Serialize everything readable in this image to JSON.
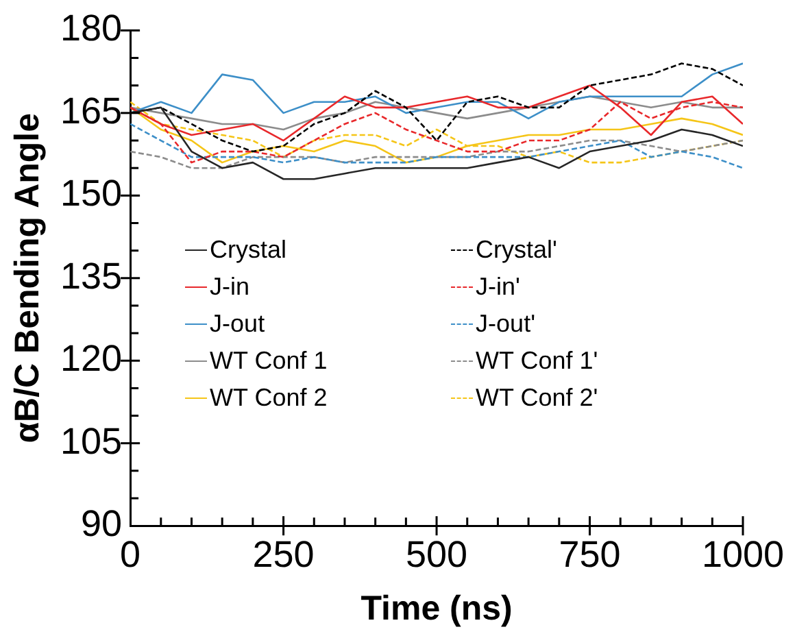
{
  "chart_data": {
    "type": "line",
    "xlabel": "Time (ns)",
    "ylabel": "αB/C Bending Angle",
    "x": [
      0,
      50,
      100,
      150,
      200,
      250,
      300,
      350,
      400,
      450,
      500,
      550,
      600,
      650,
      700,
      750,
      800,
      850,
      900,
      950,
      1000
    ],
    "xlim": [
      0,
      1000
    ],
    "xticks": [
      0,
      {
        "value": 50,
        "label": null
      },
      {
        "value": 100,
        "label": null
      },
      {
        "value": 150,
        "label": null
      },
      {
        "value": 200,
        "label": null
      },
      250,
      {
        "value": 300,
        "label": null
      },
      {
        "value": 350,
        "label": null
      },
      {
        "value": 400,
        "label": null
      },
      {
        "value": 450,
        "label": null
      },
      500,
      {
        "value": 550,
        "label": null
      },
      {
        "value": 600,
        "label": null
      },
      {
        "value": 650,
        "label": null
      },
      {
        "value": 700,
        "label": null
      },
      750,
      {
        "value": 800,
        "label": null
      },
      {
        "value": 850,
        "label": null
      },
      {
        "value": 900,
        "label": null
      },
      {
        "value": 950,
        "label": null
      },
      1000
    ],
    "ylim": [
      90,
      180
    ],
    "yticks": [
      90,
      {
        "value": 95,
        "label": null
      },
      {
        "value": 100,
        "label": null
      },
      105,
      {
        "value": 110,
        "label": null
      },
      {
        "value": 115,
        "label": null
      },
      120,
      {
        "value": 125,
        "label": null
      },
      {
        "value": 130,
        "label": null
      },
      135,
      {
        "value": 140,
        "label": null
      },
      {
        "value": 145,
        "label": null
      },
      150,
      {
        "value": 155,
        "label": null
      },
      {
        "value": 160,
        "label": null
      },
      165,
      {
        "value": 170,
        "label": null
      },
      {
        "value": 175,
        "label": null
      },
      180
    ],
    "grid": false,
    "legend": "bottom",
    "marker": "none",
    "series": [
      {
        "name": "Crystal",
        "color": "#262626",
        "line_style": "solid",
        "values": [
          165,
          166,
          158,
          155,
          156,
          153,
          153,
          154,
          155,
          155,
          155,
          155,
          156,
          157,
          155,
          158,
          159,
          160,
          162,
          161,
          159
        ]
      },
      {
        "name": "Crystal'",
        "color": "#000000",
        "line_style": "dashed",
        "values": [
          165,
          166,
          163,
          160,
          158,
          159,
          163,
          165,
          169,
          166,
          160,
          167,
          168,
          166,
          166,
          170,
          171,
          172,
          174,
          173,
          170
        ]
      },
      {
        "name": "J-in",
        "color": "#e8282b",
        "line_style": "solid",
        "values": [
          166,
          163,
          161,
          162,
          163,
          160,
          164,
          168,
          166,
          166,
          167,
          168,
          166,
          166,
          168,
          170,
          166,
          161,
          167,
          168,
          163
        ]
      },
      {
        "name": "J-in'",
        "color": "#e8282b",
        "line_style": "dashed",
        "values": [
          166,
          163,
          156,
          158,
          158,
          157,
          160,
          163,
          165,
          162,
          160,
          158,
          158,
          160,
          160,
          162,
          167,
          164,
          166,
          167,
          166
        ]
      },
      {
        "name": "J-out",
        "color": "#3d8fc8",
        "line_style": "solid",
        "values": [
          165,
          167,
          165,
          172,
          171,
          165,
          167,
          167,
          168,
          165,
          166,
          167,
          167,
          164,
          167,
          168,
          168,
          168,
          168,
          172,
          174
        ]
      },
      {
        "name": "J-out'",
        "color": "#3d8fc8",
        "line_style": "dashed",
        "values": [
          163,
          160,
          157,
          157,
          157,
          156,
          157,
          156,
          156,
          156,
          157,
          157,
          157,
          157,
          158,
          159,
          160,
          157,
          158,
          157,
          155
        ]
      },
      {
        "name": "WT Conf 1",
        "color": "#8c8c8c",
        "line_style": "solid",
        "values": [
          166,
          165,
          164,
          163,
          163,
          162,
          164,
          165,
          167,
          166,
          165,
          164,
          165,
          166,
          167,
          168,
          167,
          166,
          167,
          166,
          166
        ]
      },
      {
        "name": "WT Conf 1'",
        "color": "#8c8c8c",
        "line_style": "dashed",
        "values": [
          158,
          157,
          155,
          155,
          157,
          157,
          157,
          156,
          157,
          157,
          157,
          157,
          158,
          158,
          159,
          160,
          160,
          159,
          158,
          159,
          160
        ]
      },
      {
        "name": "WT Conf 2",
        "color": "#f5c518",
        "line_style": "solid",
        "values": [
          166,
          162,
          160,
          156,
          158,
          159,
          158,
          160,
          159,
          156,
          157,
          159,
          160,
          161,
          161,
          162,
          162,
          163,
          164,
          163,
          161
        ]
      },
      {
        "name": "WT Conf 2'",
        "color": "#f5c518",
        "line_style": "dashed",
        "values": [
          167,
          163,
          162,
          161,
          160,
          157,
          160,
          161,
          161,
          159,
          162,
          159,
          159,
          157,
          158,
          156,
          156,
          157,
          158,
          159,
          160
        ]
      }
    ]
  }
}
